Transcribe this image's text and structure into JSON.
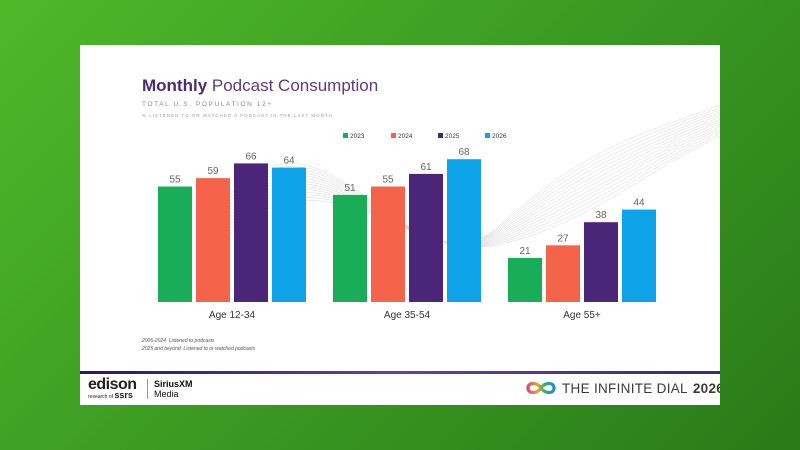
{
  "slide": {
    "title_bold": "Monthly",
    "title_rest": "Podcast Consumption",
    "subtitle": "TOTAL U.S. POPULATION 12+",
    "subtitle2": "% LISTENED TO OR WATCHED A PODCAST IN THE LAST MONTH",
    "note1": "2006-2024: Listened to podcasts",
    "note2": "2025 and beyond: Listened to or watched podcasts"
  },
  "footer": {
    "edison": "edison",
    "research_of": "research of",
    "ssrs": "ssrs",
    "sirius_top": "SiriusXM",
    "sirius_bottom": "Media",
    "infinite_dial": "THE INFINITE DIAL",
    "year": "2026"
  },
  "colors": {
    "2023": "#1aad57",
    "2024": "#f5644a",
    "2025": "#4b2578",
    "2026": "#0ea3e8"
  },
  "chart_data": {
    "type": "bar",
    "categories": [
      "Age 12-34",
      "Age 35-54",
      "Age 55+"
    ],
    "series": [
      {
        "name": "2023",
        "values": [
          55,
          51,
          21
        ]
      },
      {
        "name": "2024",
        "values": [
          59,
          55,
          27
        ]
      },
      {
        "name": "2025",
        "values": [
          66,
          61,
          38
        ]
      },
      {
        "name": "2026",
        "values": [
          64,
          68,
          44
        ]
      }
    ],
    "legend": "top-center",
    "ylim": [
      0,
      75
    ],
    "grid": false
  }
}
